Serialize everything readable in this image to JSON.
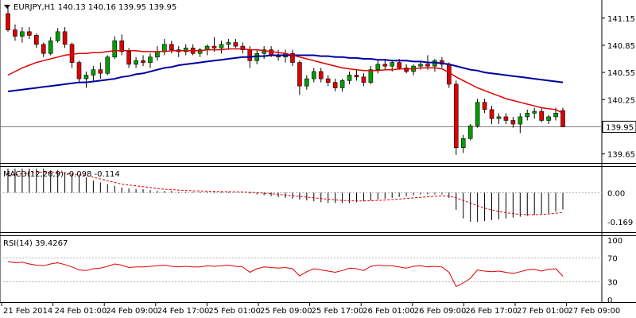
{
  "chart_data": [
    {
      "type": "candlestick",
      "title": "EURJPY,H1  140.13 140.16 139.95 139.95",
      "symbol": "EURJPY",
      "timeframe": "H1",
      "header_values": [
        "140.13",
        "140.16",
        "139.95",
        "139.95"
      ],
      "current_price_label": "139.95",
      "current_price": 139.95,
      "ylim": [
        139.55,
        141.35
      ],
      "yticks": [
        141.15,
        140.85,
        140.55,
        140.25,
        139.65
      ],
      "ytick_labels": [
        "141.15",
        "140.85",
        "140.55",
        "140.25",
        "139.65"
      ],
      "x_ticks": [
        "21 Feb 2014",
        "24 Feb 01:00",
        "24 Feb 09:00",
        "24 Feb 17:00",
        "25 Feb 01:00",
        "25 Feb 09:00",
        "25 Feb 17:00",
        "26 Feb 01:00",
        "26 Feb 09:00",
        "26 Feb 17:00",
        "27 Feb 01:00",
        "27 Feb 09:00"
      ],
      "bullish_color": "#00a000",
      "bearish_color": "#e00000",
      "ohlc": [
        [
          141.2,
          141.28,
          141.0,
          141.02
        ],
        [
          141.02,
          141.08,
          140.9,
          140.95
        ],
        [
          140.95,
          141.05,
          140.88,
          141.0
        ],
        [
          141.0,
          141.05,
          140.92,
          140.96
        ],
        [
          140.96,
          140.98,
          140.82,
          140.86
        ],
        [
          140.86,
          140.88,
          140.72,
          140.76
        ],
        [
          140.76,
          140.94,
          140.74,
          140.9
        ],
        [
          140.9,
          141.04,
          140.88,
          141.0
        ],
        [
          141.0,
          141.05,
          140.82,
          140.86
        ],
        [
          140.86,
          140.88,
          140.6,
          140.66
        ],
        [
          140.66,
          140.68,
          140.45,
          140.48
        ],
        [
          140.48,
          140.56,
          140.38,
          140.52
        ],
        [
          140.52,
          140.62,
          140.44,
          140.58
        ],
        [
          140.58,
          140.66,
          140.48,
          140.54
        ],
        [
          140.54,
          140.74,
          140.52,
          140.72
        ],
        [
          140.72,
          140.95,
          140.7,
          140.9
        ],
        [
          140.9,
          140.97,
          140.74,
          140.78
        ],
        [
          140.78,
          140.82,
          140.6,
          140.64
        ],
        [
          140.64,
          140.72,
          140.6,
          140.68
        ],
        [
          140.68,
          140.74,
          140.62,
          140.66
        ],
        [
          140.66,
          140.76,
          140.6,
          140.72
        ],
        [
          140.72,
          140.84,
          140.68,
          140.78
        ],
        [
          140.78,
          140.92,
          140.74,
          140.86
        ],
        [
          140.86,
          140.9,
          140.76,
          140.8
        ],
        [
          140.8,
          140.84,
          140.72,
          140.78
        ],
        [
          140.78,
          140.86,
          140.74,
          140.82
        ],
        [
          140.82,
          140.86,
          140.74,
          140.76
        ],
        [
          140.76,
          140.82,
          140.72,
          140.8
        ],
        [
          140.8,
          140.86,
          140.74,
          140.84
        ],
        [
          140.84,
          140.94,
          140.78,
          140.82
        ],
        [
          140.82,
          140.9,
          140.76,
          140.86
        ],
        [
          140.86,
          140.92,
          140.8,
          140.88
        ],
        [
          140.88,
          140.92,
          140.82,
          140.84
        ],
        [
          140.84,
          140.88,
          140.76,
          140.8
        ],
        [
          140.8,
          140.84,
          140.6,
          140.68
        ],
        [
          140.68,
          140.8,
          140.64,
          140.76
        ],
        [
          140.76,
          140.84,
          140.7,
          140.8
        ],
        [
          140.8,
          140.84,
          140.72,
          140.74
        ],
        [
          140.74,
          140.8,
          140.68,
          140.72
        ],
        [
          140.72,
          140.8,
          140.66,
          140.76
        ],
        [
          140.76,
          140.8,
          140.62,
          140.66
        ],
        [
          140.66,
          140.68,
          140.3,
          140.4
        ],
        [
          140.4,
          140.52,
          140.36,
          140.48
        ],
        [
          140.48,
          140.6,
          140.44,
          140.56
        ],
        [
          140.56,
          140.6,
          140.44,
          140.48
        ],
        [
          140.48,
          140.52,
          140.4,
          140.44
        ],
        [
          140.44,
          140.48,
          140.34,
          140.38
        ],
        [
          140.38,
          140.48,
          140.34,
          140.46
        ],
        [
          140.46,
          140.56,
          140.42,
          140.52
        ],
        [
          140.52,
          140.58,
          140.46,
          140.5
        ],
        [
          140.5,
          140.54,
          140.4,
          140.44
        ],
        [
          140.44,
          140.62,
          140.42,
          140.58
        ],
        [
          140.58,
          140.68,
          140.54,
          140.64
        ],
        [
          140.64,
          140.7,
          140.58,
          140.62
        ],
        [
          140.62,
          140.68,
          140.56,
          140.66
        ],
        [
          140.66,
          140.7,
          140.58,
          140.6
        ],
        [
          140.6,
          140.64,
          140.54,
          140.56
        ],
        [
          140.56,
          140.64,
          140.52,
          140.62
        ],
        [
          140.62,
          140.68,
          140.58,
          140.64
        ],
        [
          140.64,
          140.74,
          140.58,
          140.62
        ],
        [
          140.62,
          140.7,
          140.56,
          140.68
        ],
        [
          140.68,
          140.72,
          140.6,
          140.64
        ],
        [
          140.64,
          140.66,
          140.38,
          140.42
        ],
        [
          140.42,
          140.46,
          139.64,
          139.72
        ],
        [
          139.72,
          139.86,
          139.66,
          139.82
        ],
        [
          139.82,
          139.98,
          139.8,
          139.96
        ],
        [
          139.96,
          140.26,
          139.94,
          140.22
        ],
        [
          140.22,
          140.26,
          140.1,
          140.14
        ],
        [
          140.14,
          140.18,
          139.98,
          140.04
        ],
        [
          140.04,
          140.1,
          139.98,
          140.06
        ],
        [
          140.06,
          140.1,
          139.98,
          140.02
        ],
        [
          140.02,
          140.06,
          139.94,
          139.98
        ],
        [
          139.98,
          140.1,
          139.88,
          140.06
        ],
        [
          140.06,
          140.14,
          140.02,
          140.1
        ],
        [
          140.1,
          140.16,
          140.04,
          140.12
        ],
        [
          140.12,
          140.16,
          140.0,
          140.02
        ],
        [
          140.02,
          140.08,
          139.98,
          140.06
        ],
        [
          140.06,
          140.16,
          140.02,
          140.1
        ],
        [
          140.13,
          140.16,
          139.95,
          139.95
        ]
      ],
      "ma_fast": [
        140.52,
        140.56,
        140.6,
        140.63,
        140.66,
        140.68,
        140.7,
        140.72,
        140.74,
        140.75,
        140.76,
        140.76,
        140.77,
        140.77,
        140.78,
        140.79,
        140.79,
        140.79,
        140.79,
        140.78,
        140.78,
        140.78,
        140.78,
        140.79,
        140.79,
        140.79,
        140.79,
        140.79,
        140.8,
        140.8,
        140.8,
        140.81,
        140.81,
        140.81,
        140.8,
        140.8,
        140.79,
        140.78,
        140.77,
        140.76,
        140.74,
        140.72,
        140.7,
        140.68,
        140.66,
        140.64,
        140.62,
        140.6,
        140.59,
        140.58,
        140.57,
        140.57,
        140.57,
        140.58,
        140.58,
        140.59,
        140.59,
        140.59,
        140.6,
        140.6,
        140.6,
        140.59,
        140.55,
        140.5,
        140.46,
        140.42,
        140.38,
        140.35,
        140.32,
        140.29,
        140.26,
        140.24,
        140.22,
        140.2,
        140.18,
        140.16,
        140.15,
        140.14,
        140.1
      ],
      "ma_slow": [
        140.34,
        140.35,
        140.36,
        140.37,
        140.38,
        140.39,
        140.4,
        140.41,
        140.42,
        140.43,
        140.44,
        140.44,
        140.45,
        140.46,
        140.47,
        140.48,
        140.5,
        140.51,
        140.53,
        140.54,
        140.56,
        140.58,
        140.6,
        140.61,
        140.63,
        140.64,
        140.65,
        140.66,
        140.67,
        140.68,
        140.69,
        140.7,
        140.71,
        140.72,
        140.72,
        140.73,
        140.73,
        140.74,
        140.74,
        140.74,
        140.74,
        140.74,
        140.74,
        140.74,
        140.73,
        140.73,
        140.72,
        140.72,
        140.71,
        140.71,
        140.7,
        140.7,
        140.69,
        140.69,
        140.68,
        140.68,
        140.68,
        140.67,
        140.67,
        140.66,
        140.66,
        140.65,
        140.64,
        140.62,
        140.6,
        140.58,
        140.57,
        140.55,
        140.54,
        140.53,
        140.52,
        140.51,
        140.5,
        140.49,
        140.48,
        140.47,
        140.46,
        140.45,
        140.44
      ],
      "ma_fast_color": "#e00000",
      "ma_slow_color": "#0000a0"
    },
    {
      "type": "macd",
      "title": "MACD(12,26,9) -0.098 -0.114",
      "name": "MACD(12,26,9)",
      "header_values": [
        "-0.098",
        "-0.114"
      ],
      "yticks": [
        0.0,
        -0.169
      ],
      "ytick_labels": [
        "0.00",
        "-0.169"
      ],
      "ylim": [
        -0.23,
        0.15
      ],
      "histogram": [
        0.14,
        0.14,
        0.14,
        0.14,
        0.14,
        0.14,
        0.13,
        0.13,
        0.12,
        0.11,
        0.1,
        0.09,
        0.07,
        0.06,
        0.05,
        0.04,
        0.03,
        0.025,
        0.02,
        0.02,
        0.015,
        0.01,
        0.01,
        0.01,
        0.005,
        0.005,
        0.005,
        0.005,
        0.005,
        0.005,
        0.005,
        0.005,
        0.0,
        0.0,
        -0.005,
        -0.01,
        -0.015,
        -0.02,
        -0.025,
        -0.03,
        -0.035,
        -0.04,
        -0.045,
        -0.05,
        -0.055,
        -0.06,
        -0.06,
        -0.06,
        -0.06,
        -0.055,
        -0.05,
        -0.045,
        -0.04,
        -0.035,
        -0.03,
        -0.025,
        -0.02,
        -0.015,
        -0.01,
        -0.01,
        -0.01,
        -0.01,
        -0.03,
        -0.1,
        -0.15,
        -0.17,
        -0.17,
        -0.165,
        -0.16,
        -0.155,
        -0.15,
        -0.145,
        -0.14,
        -0.135,
        -0.13,
        -0.125,
        -0.12,
        -0.11,
        -0.098
      ],
      "signal": [
        0.1,
        0.105,
        0.11,
        0.115,
        0.118,
        0.12,
        0.12,
        0.118,
        0.115,
        0.11,
        0.105,
        0.1,
        0.09,
        0.08,
        0.07,
        0.06,
        0.05,
        0.045,
        0.04,
        0.035,
        0.03,
        0.025,
        0.02,
        0.018,
        0.015,
        0.013,
        0.011,
        0.01,
        0.009,
        0.008,
        0.007,
        0.006,
        0.005,
        0.004,
        0.002,
        0.0,
        -0.003,
        -0.006,
        -0.01,
        -0.014,
        -0.018,
        -0.022,
        -0.026,
        -0.03,
        -0.034,
        -0.038,
        -0.042,
        -0.045,
        -0.047,
        -0.048,
        -0.048,
        -0.047,
        -0.045,
        -0.043,
        -0.04,
        -0.037,
        -0.034,
        -0.03,
        -0.027,
        -0.024,
        -0.021,
        -0.019,
        -0.02,
        -0.03,
        -0.045,
        -0.06,
        -0.075,
        -0.09,
        -0.1,
        -0.11,
        -0.117,
        -0.122,
        -0.126,
        -0.128,
        -0.128,
        -0.127,
        -0.124,
        -0.12,
        -0.114
      ],
      "signal_color": "#e00000",
      "histogram_color": "#000000"
    },
    {
      "type": "line",
      "title": "RSI(14) 39.4267",
      "name": "RSI(14)",
      "header_value": "39.4267",
      "ylim": [
        0,
        100
      ],
      "yticks": [
        100,
        70,
        30,
        0
      ],
      "ytick_labels": [
        "100",
        "70",
        "30",
        "0"
      ],
      "levels": [
        70,
        30
      ],
      "values": [
        64,
        62,
        63,
        60,
        58,
        57,
        60,
        62,
        59,
        55,
        50,
        49,
        52,
        53,
        56,
        60,
        58,
        54,
        55,
        55,
        56,
        57,
        58,
        56,
        55,
        56,
        55,
        55,
        57,
        56,
        57,
        58,
        56,
        55,
        46,
        52,
        55,
        54,
        53,
        54,
        52,
        40,
        47,
        52,
        50,
        48,
        46,
        49,
        53,
        52,
        49,
        56,
        58,
        57,
        57,
        55,
        53,
        56,
        57,
        55,
        56,
        55,
        46,
        22,
        28,
        36,
        50,
        48,
        47,
        48,
        46,
        44,
        47,
        50,
        51,
        48,
        51,
        52,
        39.4267
      ],
      "line_color": "#e00000"
    }
  ]
}
